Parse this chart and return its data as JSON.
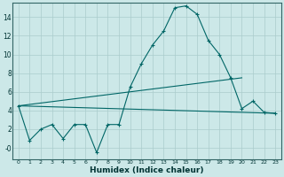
{
  "title": "",
  "xlabel": "Humidex (Indice chaleur)",
  "background_color": "#cce8e8",
  "grid_color": "#aacccc",
  "line_color": "#006666",
  "x": [
    0,
    1,
    2,
    3,
    4,
    5,
    6,
    7,
    8,
    9,
    10,
    11,
    12,
    13,
    14,
    15,
    16,
    17,
    18,
    19,
    20,
    21,
    22,
    23
  ],
  "series1": [
    4.5,
    0.8,
    2.0,
    2.5,
    1.0,
    2.5,
    2.5,
    -0.5,
    2.5,
    2.5,
    6.5,
    9.0,
    11.0,
    12.5,
    15.0,
    15.2,
    14.3,
    11.5,
    10.0,
    7.5,
    4.2,
    5.0,
    3.8,
    3.7
  ],
  "trend1_x": [
    0,
    23
  ],
  "trend1_y": [
    4.5,
    3.7
  ],
  "trend2_x": [
    0,
    20
  ],
  "trend2_y": [
    4.5,
    7.5
  ],
  "ylim": [
    -1.2,
    15.5
  ],
  "xlim": [
    -0.5,
    23.5
  ],
  "yticks": [
    0,
    2,
    4,
    6,
    8,
    10,
    12,
    14
  ],
  "ytick_labels": [
    "-0",
    "2",
    "4",
    "6",
    "8",
    "10",
    "12",
    "14"
  ],
  "xticks": [
    0,
    1,
    2,
    3,
    4,
    5,
    6,
    7,
    8,
    9,
    10,
    11,
    12,
    13,
    14,
    15,
    16,
    17,
    18,
    19,
    20,
    21,
    22,
    23
  ]
}
